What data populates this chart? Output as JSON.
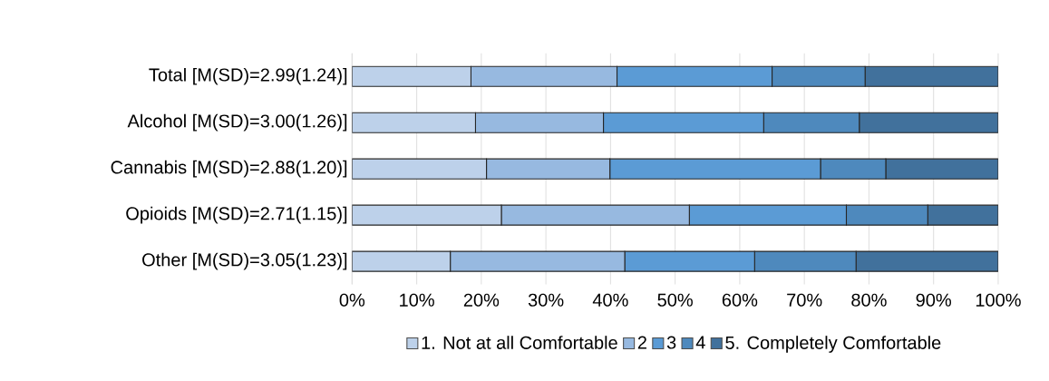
{
  "chart_data": {
    "type": "bar",
    "orientation": "horizontal",
    "stacked": true,
    "categories": [
      "Total [M(SD)=2.99(1.24)]",
      "Alcohol [M(SD)=3.00(1.26)]",
      "Cannabis [M(SD)=2.88(1.20)]",
      "Opioids [M(SD)=2.71(1.15)]",
      "Other [M(SD)=3.05(1.23)]"
    ],
    "series": [
      {
        "name": "1. Not at all Comfortable",
        "color": "#bdd1ea",
        "values": [
          18.4,
          19.1,
          20.8,
          23.1,
          15.2
        ]
      },
      {
        "name": "2",
        "color": "#97b9e0",
        "values": [
          22.6,
          19.8,
          19.1,
          29.1,
          27.0
        ]
      },
      {
        "name": "3",
        "color": "#5b9bd5",
        "values": [
          24.0,
          24.8,
          32.6,
          24.3,
          20.1
        ]
      },
      {
        "name": "4",
        "color": "#4e89bd",
        "values": [
          14.4,
          14.8,
          10.1,
          12.6,
          15.7
        ]
      },
      {
        "name": "5. Completely Comfortable",
        "color": "#41719c",
        "values": [
          20.6,
          21.5,
          17.4,
          10.9,
          22.0
        ]
      }
    ],
    "xlim": [
      0,
      100
    ],
    "xticks": [
      {
        "value": 0,
        "label": "0%"
      },
      {
        "value": 10,
        "label": "10%"
      },
      {
        "value": 20,
        "label": "20%"
      },
      {
        "value": 30,
        "label": "30%"
      },
      {
        "value": 40,
        "label": "40%"
      },
      {
        "value": 50,
        "label": "50%"
      },
      {
        "value": 60,
        "label": "60%"
      },
      {
        "value": 70,
        "label": "70%"
      },
      {
        "value": 80,
        "label": "80%"
      },
      {
        "value": 90,
        "label": "90%"
      },
      {
        "value": 100,
        "label": "100%"
      }
    ],
    "grid": "x",
    "legend": "bottom"
  }
}
